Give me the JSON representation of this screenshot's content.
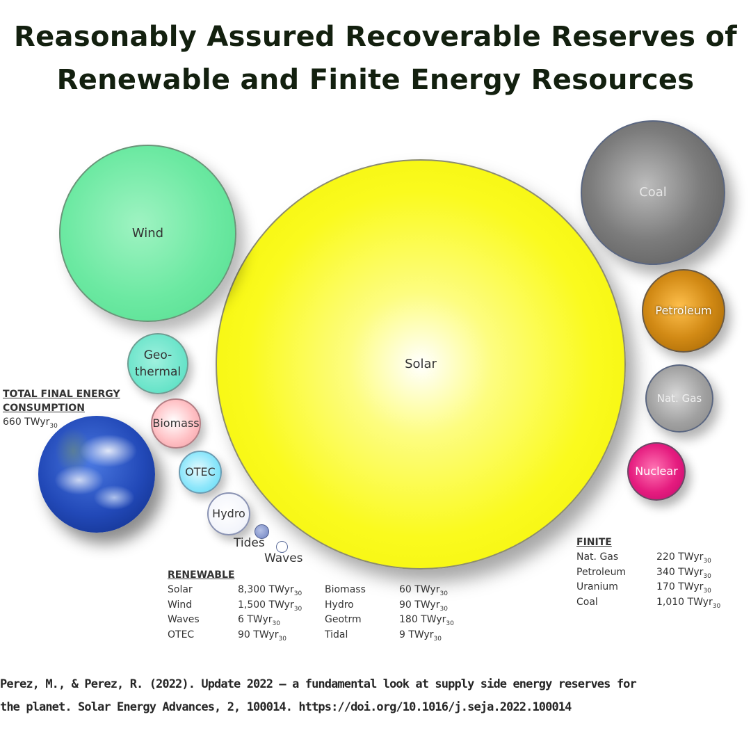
{
  "title": {
    "line1": "Reasonably Assured Recoverable Reserves of",
    "line2": "Renewable and Finite Energy Resources"
  },
  "bubbles": {
    "wind": "Wind",
    "solar": "Solar",
    "geothermal": "Geo-\nthermal",
    "biomass": "Biomass",
    "otec": "OTEC",
    "hydro": "Hydro",
    "tides": "Tides",
    "waves": "Waves",
    "coal": "Coal",
    "petroleum": "Petroleum",
    "nat_gas": "Nat. Gas",
    "nuclear": "Nuclear"
  },
  "total_final_energy": {
    "heading_line1": "TOTAL FINAL ENERGY",
    "heading_line2": "CONSUMPTION",
    "value": "660 TWyr",
    "value_sub": "30"
  },
  "renewable": {
    "heading": "RENEWABLE",
    "rows": [
      {
        "name": "Solar",
        "value": "8,300 TWyr",
        "sub": "30",
        "name2": "Biomass",
        "value2": "60 TWyr",
        "sub2": "30"
      },
      {
        "name": "Wind",
        "value": "1,500 TWyr",
        "sub": "30",
        "name2": "Hydro",
        "value2": "90 TWyr",
        "sub2": "30"
      },
      {
        "name": "Waves",
        "value": "6 TWyr",
        "sub": "30",
        "name2": "Geotrm",
        "value2": "180 TWyr",
        "sub2": "30"
      },
      {
        "name": "OTEC",
        "value": "90 TWyr",
        "sub": "30",
        "name2": "Tidal",
        "value2": "9 TWyr",
        "sub2": "30"
      }
    ]
  },
  "finite": {
    "heading": "FINITE",
    "rows": [
      {
        "name": "Nat. Gas",
        "value": "220 TWyr",
        "sub": "30"
      },
      {
        "name": "Petroleum",
        "value": "340 TWyr",
        "sub": "30"
      },
      {
        "name": "Uranium",
        "value": "170 TWyr",
        "sub": "30"
      },
      {
        "name": "Coal",
        "value": "1,010 TWyr",
        "sub": "30"
      }
    ]
  },
  "citation": {
    "line1": "Perez, M., & Perez, R. (2022). Update 2022 – a fundamental look at supply side energy reserves for",
    "line2": "the planet. Solar Energy Advances, 2, 100014. https://doi.org/10.1016/j.seja.2022.100014"
  },
  "colors": {
    "solar": "#f5f500",
    "wind": "#6ce9a2",
    "geothermal": "#66e3c8",
    "biomass": "#ffc1c5",
    "otec": "#8fe7fb",
    "coal": "#7c7c7c",
    "petroleum": "#d28a15",
    "nat_gas": "#a1a1a1",
    "nuclear": "#e51c7f"
  }
}
